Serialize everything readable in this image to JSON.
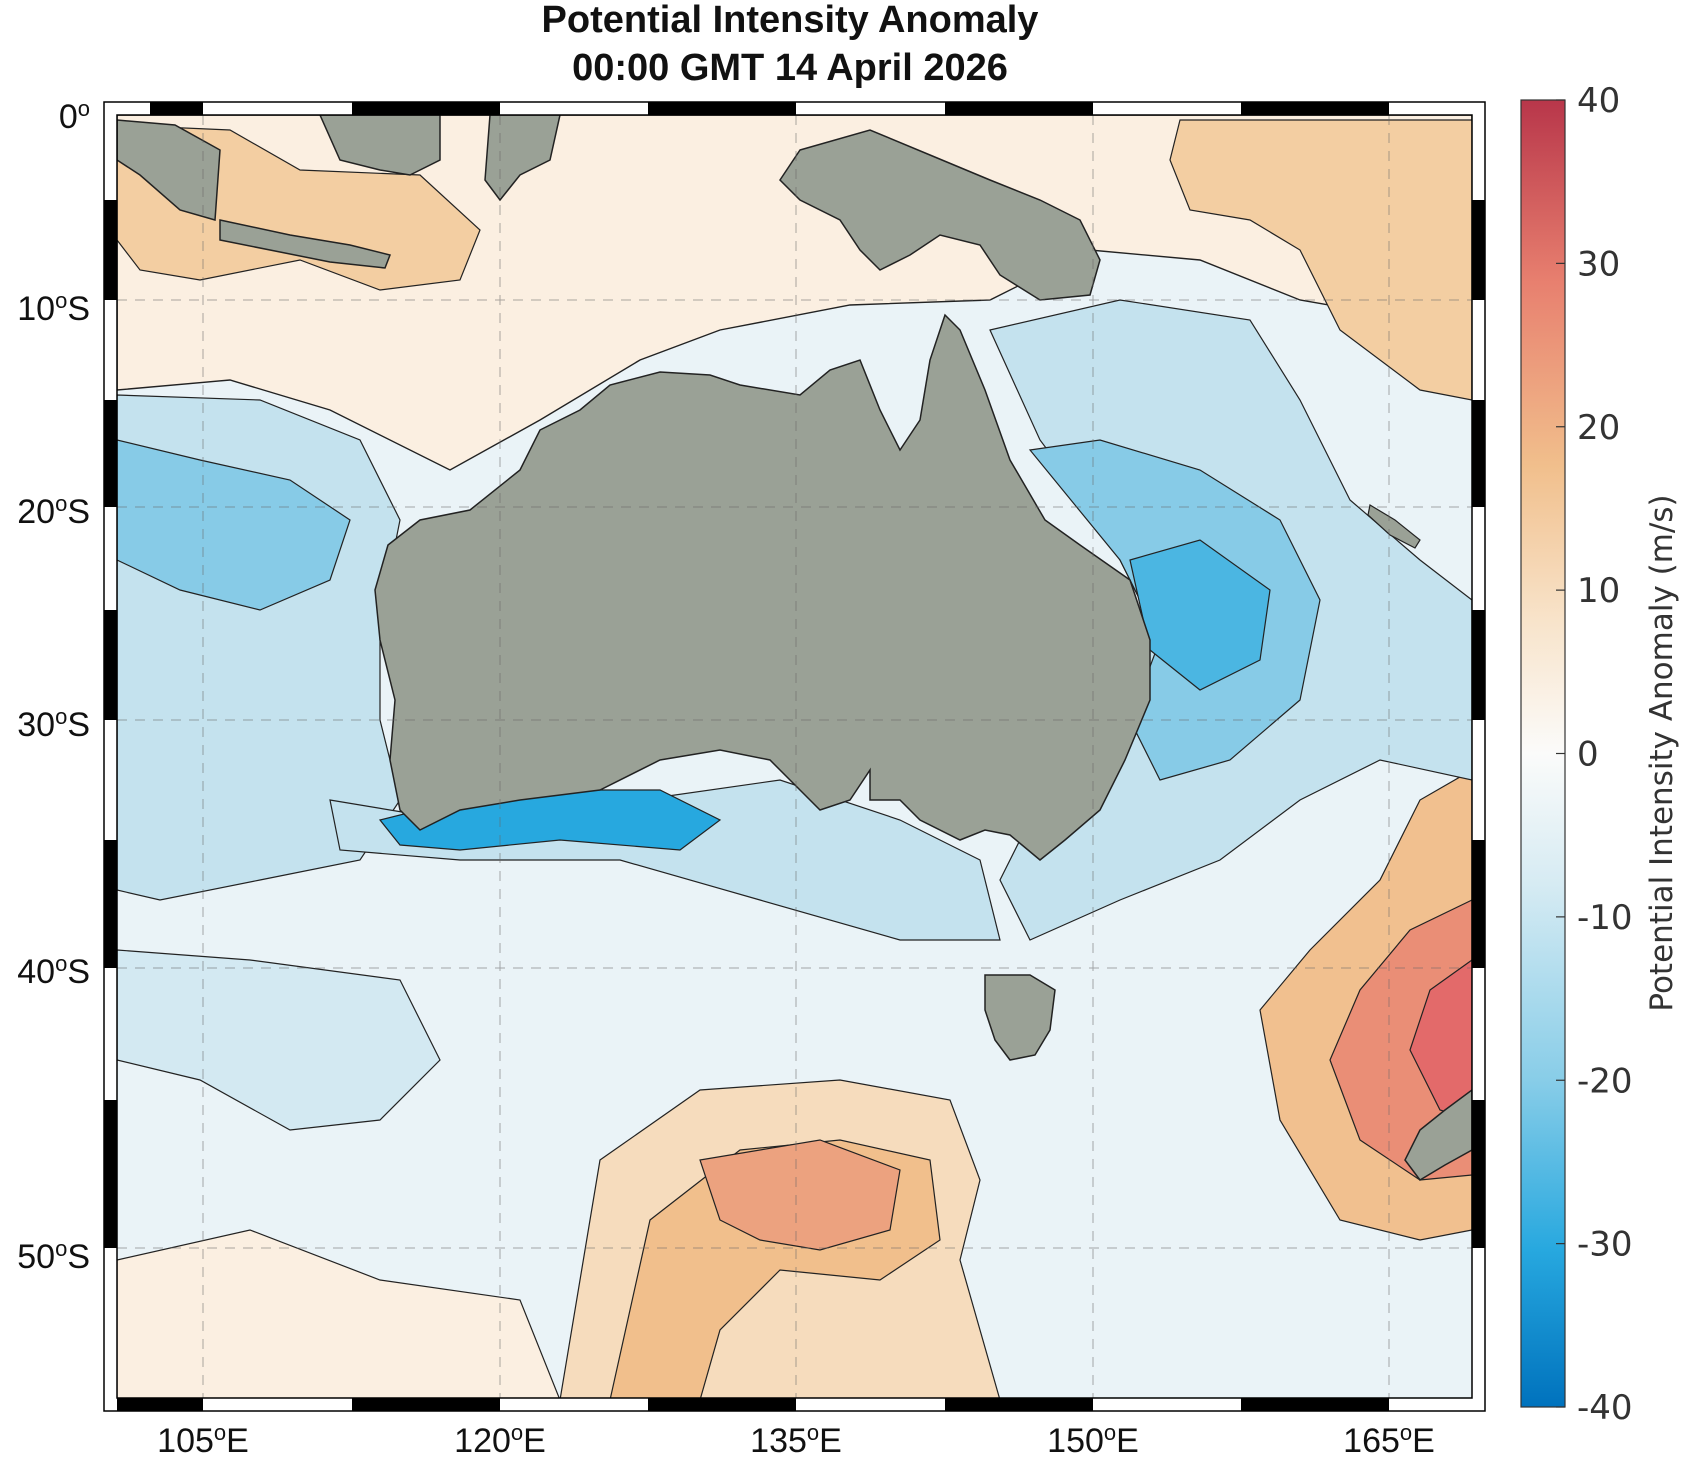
{
  "title": {
    "line1": "Potential Intensity Anomaly",
    "line2": "00:00 GMT 14  April 2026"
  },
  "latitude_labels": [
    {
      "deg": "0",
      "suffix": ""
    },
    {
      "deg": "10",
      "suffix": "S"
    },
    {
      "deg": "20",
      "suffix": "S"
    },
    {
      "deg": "30",
      "suffix": "S"
    },
    {
      "deg": "40",
      "suffix": "S"
    },
    {
      "deg": "50",
      "suffix": "S"
    }
  ],
  "longitude_labels": [
    {
      "deg": "105",
      "suffix": "E"
    },
    {
      "deg": "120",
      "suffix": "E"
    },
    {
      "deg": "135",
      "suffix": "E"
    },
    {
      "deg": "150",
      "suffix": "E"
    },
    {
      "deg": "165",
      "suffix": "E"
    }
  ],
  "colorbar": {
    "title": "Potential Intensity Anomaly (m/s)",
    "range": [
      -40,
      40
    ],
    "ticks": [
      "40",
      "30",
      "20",
      "10",
      "0",
      "-10",
      "-20",
      "-30",
      "-40"
    ]
  },
  "colors": {
    "land": "#9aa196",
    "ocean_neutral": "#eaf3f7",
    "strong_negative": "#0072bd",
    "strong_positive": "#b8364a"
  }
}
